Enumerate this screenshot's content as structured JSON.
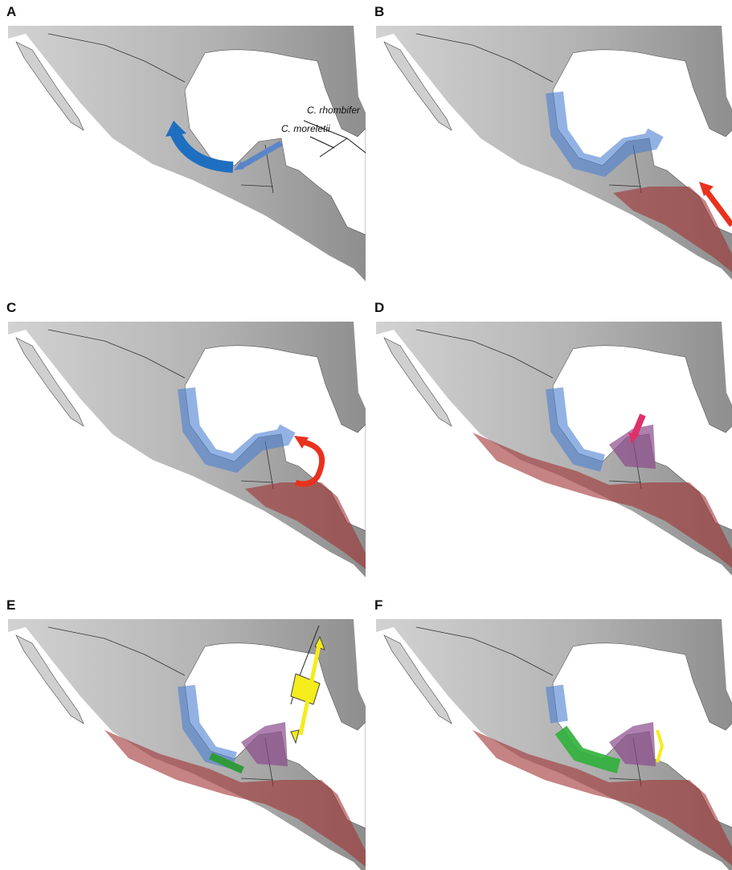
{
  "panels": [
    {
      "label": "A"
    },
    {
      "label": "B"
    },
    {
      "label": "C"
    },
    {
      "label": "D"
    },
    {
      "label": "E"
    },
    {
      "label": "F"
    }
  ],
  "tree": {
    "taxa": [
      "C. rhombifer",
      "C. moreletii"
    ]
  }
}
